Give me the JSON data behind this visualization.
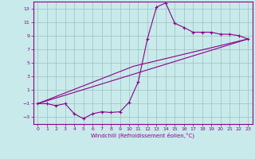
{
  "xlabel": "Windchill (Refroidissement éolien,°C)",
  "background_color": "#c8eaea",
  "line_color": "#8b008b",
  "grid_color": "#9fbfbf",
  "xlim": [
    -0.5,
    23.5
  ],
  "ylim": [
    -4,
    14
  ],
  "xticks": [
    0,
    1,
    2,
    3,
    4,
    5,
    6,
    7,
    8,
    9,
    10,
    11,
    12,
    13,
    14,
    15,
    16,
    17,
    18,
    19,
    20,
    21,
    22,
    23
  ],
  "yticks": [
    -3,
    -1,
    1,
    3,
    5,
    7,
    9,
    11,
    13
  ],
  "curve1_x": [
    0,
    1,
    2,
    3,
    4,
    5,
    6,
    7,
    8,
    9,
    10,
    11,
    12,
    13,
    14,
    15,
    16,
    17,
    18,
    19,
    20,
    21,
    22,
    23
  ],
  "curve1_y": [
    -1,
    -1,
    -1.3,
    -1,
    -2.5,
    -3.2,
    -2.5,
    -2.2,
    -2.3,
    -2.2,
    -0.8,
    2.2,
    8.5,
    13.2,
    13.8,
    10.8,
    10.2,
    9.5,
    9.5,
    9.5,
    9.2,
    9.2,
    9.0,
    8.5
  ],
  "curve2_x": [
    0,
    23
  ],
  "curve2_y": [
    -1,
    8.5
  ],
  "curve3_x": [
    0,
    10.5,
    23
  ],
  "curve3_y": [
    -1,
    4.5,
    8.5
  ]
}
